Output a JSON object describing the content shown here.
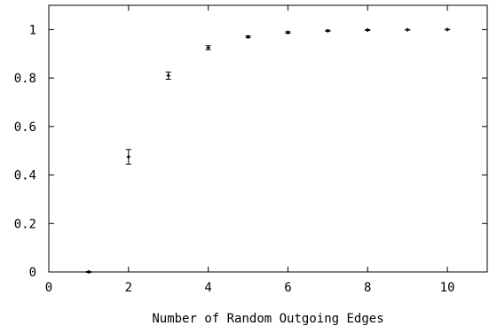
{
  "chart_data": {
    "type": "scatter",
    "title": "",
    "xlabel": "Number of Random Outgoing Edges",
    "ylabel": "",
    "xlim": [
      0,
      11
    ],
    "ylim": [
      0,
      1.1
    ],
    "xticks": [
      0,
      2,
      4,
      6,
      8,
      10
    ],
    "yticks": [
      0,
      0.2,
      0.4,
      0.6,
      0.8,
      1
    ],
    "xtick_labels": [
      "0",
      "2",
      "4",
      "6",
      "8",
      "10"
    ],
    "ytick_labels": [
      "0",
      "0.2",
      "0.4",
      "0.6",
      "0.8",
      "1"
    ],
    "grid": false,
    "error_bars": true,
    "series": [
      {
        "x": [
          1,
          2,
          3,
          4,
          5,
          6,
          7,
          8,
          9,
          10
        ],
        "y": [
          0.0,
          0.475,
          0.81,
          0.925,
          0.97,
          0.988,
          0.995,
          0.998,
          0.999,
          1.0
        ],
        "yerr": [
          0.002,
          0.03,
          0.015,
          0.008,
          0.004,
          0.003,
          0.002,
          0.002,
          0.001,
          0.001
        ]
      }
    ],
    "colors": {
      "marks": "#000000",
      "axes": "#000000"
    }
  }
}
